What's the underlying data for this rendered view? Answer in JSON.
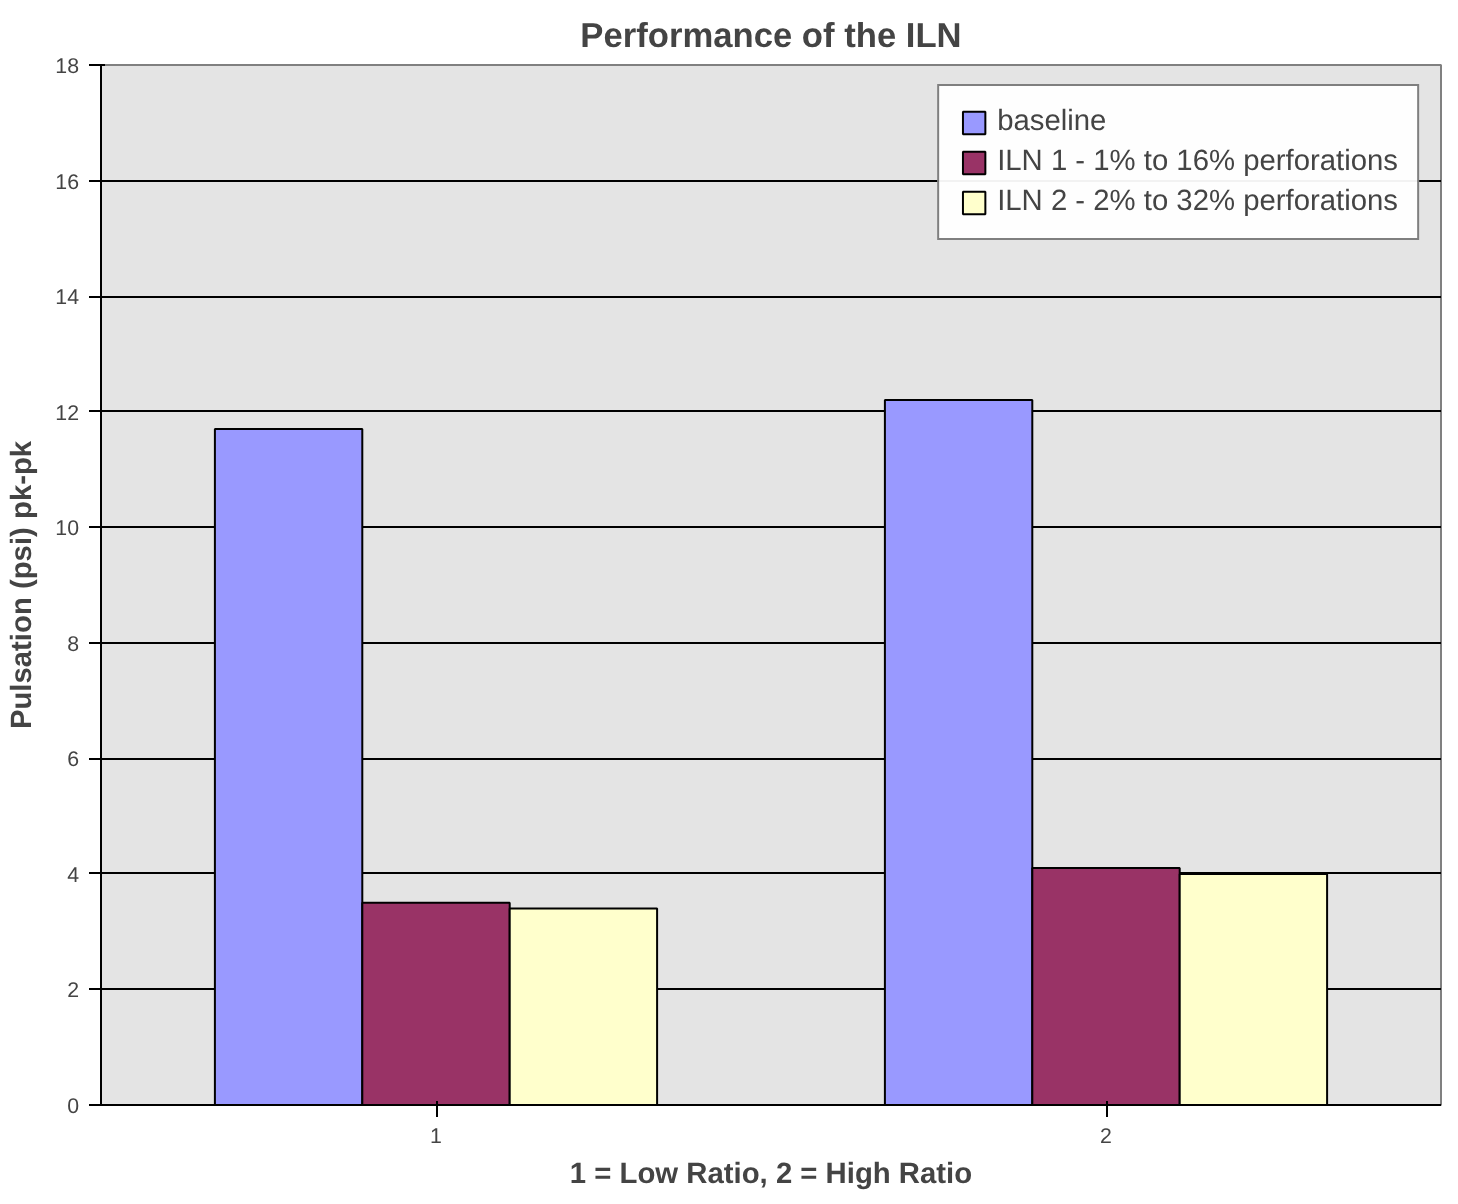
{
  "chart_data": {
    "type": "bar",
    "title": "Performance of the ILN",
    "xlabel": "1 = Low Ratio, 2 = High Ratio",
    "ylabel": "Pulsation (psi) pk-pk",
    "categories": [
      "1",
      "2"
    ],
    "series": [
      {
        "name": "baseline",
        "color": "#9999ff",
        "values": [
          11.7,
          12.2
        ]
      },
      {
        "name": "ILN 1 - 1% to 16% perforations",
        "color": "#993366",
        "values": [
          3.5,
          4.1
        ]
      },
      {
        "name": "ILN 2 - 2% to 32% perforations",
        "color": "#ffffcc",
        "values": [
          3.4,
          4.0
        ]
      }
    ],
    "ylim": [
      0,
      18
    ],
    "yticks": [
      0,
      2,
      4,
      6,
      8,
      10,
      12,
      14,
      16,
      18
    ],
    "grid": "y",
    "legend": "top right"
  }
}
